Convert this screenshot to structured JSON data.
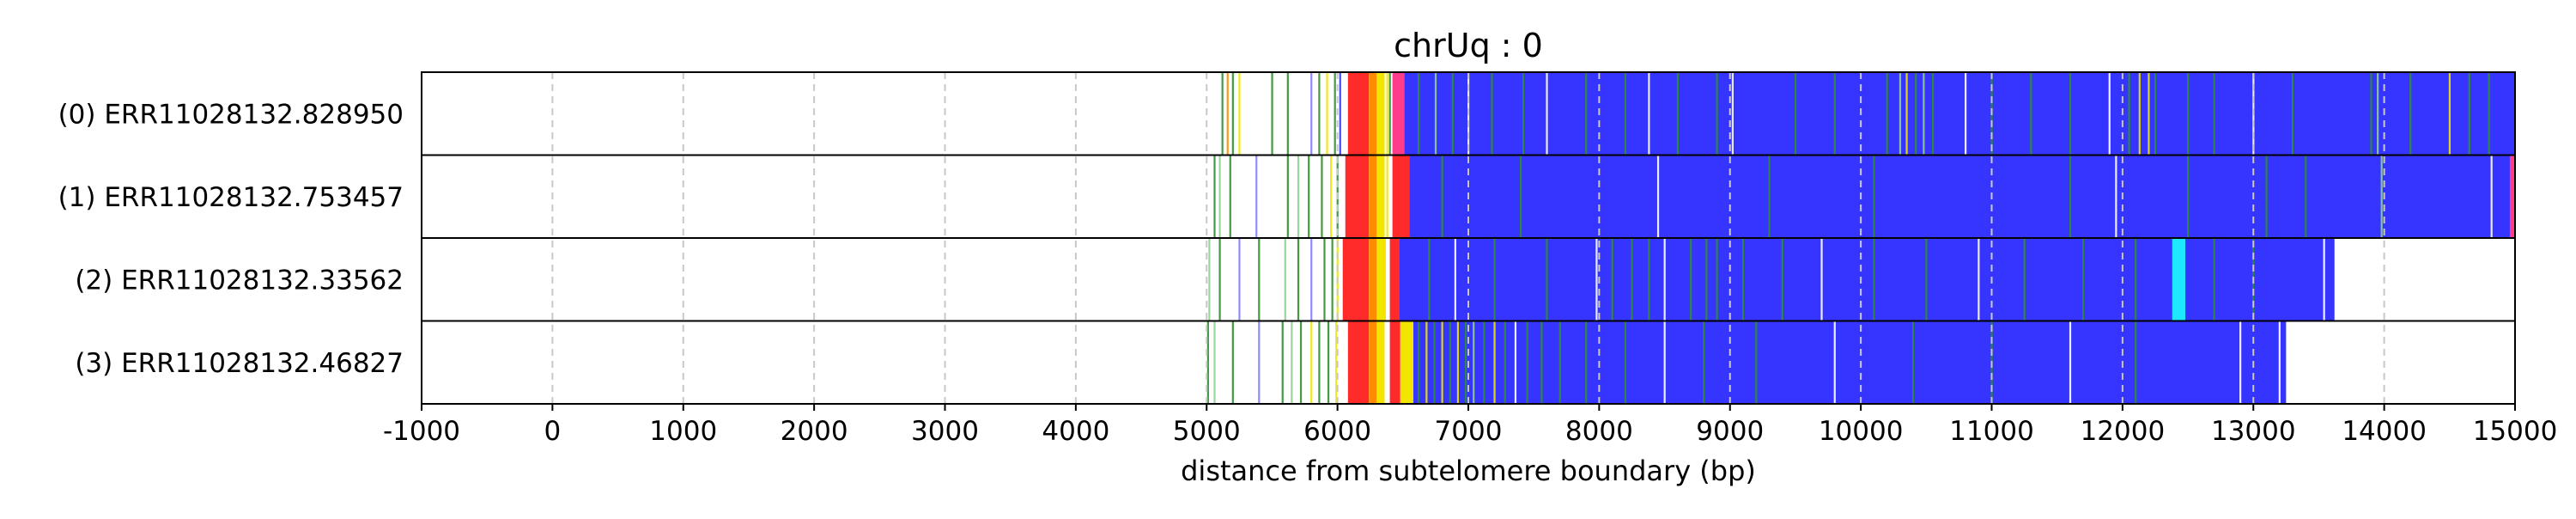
{
  "chart_data": {
    "type": "heatmap",
    "title": "chrUq : 0",
    "xlabel": "distance from subtelomere boundary (bp)",
    "ylabel": "",
    "xlim": [
      -1000,
      15000
    ],
    "xticks": [
      -1000,
      0,
      1000,
      2000,
      3000,
      4000,
      5000,
      6000,
      7000,
      8000,
      9000,
      10000,
      11000,
      12000,
      13000,
      14000,
      15000
    ],
    "xtick_labels": [
      "-1000",
      "0",
      "1000",
      "2000",
      "3000",
      "4000",
      "5000",
      "6000",
      "7000",
      "8000",
      "9000",
      "10000",
      "11000",
      "12000",
      "13000",
      "14000",
      "15000"
    ],
    "grid": "vertical dashed lines at x ticks",
    "legend": "none",
    "colors": {
      "main": "#3535ff",
      "red": "#ff2a2a",
      "orange": "#ff8c00",
      "yellow": "#f2e600",
      "green": "#2f8f2f",
      "cyan": "#1ee8ff",
      "pink": "#ff3c8c",
      "grid": "#c8c8c8",
      "frame": "#000000"
    },
    "rows": [
      {
        "label": "(0) ERR11028132.828950",
        "segments": [
          {
            "start": 6510,
            "end": 15000,
            "color": "#3535ff"
          },
          {
            "start": 6080,
            "end": 6240,
            "color": "#ff2a2a"
          },
          {
            "start": 6240,
            "end": 6300,
            "color": "#ff8c00"
          },
          {
            "start": 6300,
            "end": 6360,
            "color": "#f2e600"
          },
          {
            "start": 6420,
            "end": 6510,
            "color": "#ff3c8c"
          }
        ],
        "lines": [
          [
            5120,
            "#2f8f2f"
          ],
          [
            5160,
            "#ff8c00"
          ],
          [
            5200,
            "#2f8f2f"
          ],
          [
            5250,
            "#f2e600"
          ],
          [
            5500,
            "#2f8f2f"
          ],
          [
            5620,
            "#2f8f2f"
          ],
          [
            5800,
            "#8080ff"
          ],
          [
            5860,
            "#2f8f2f"
          ],
          [
            5920,
            "#f2e600"
          ],
          [
            5980,
            "#2f8f2f"
          ],
          [
            6020,
            "#3535ff"
          ],
          [
            6380,
            "#f2e600"
          ],
          [
            6400,
            "#2f8f2f"
          ],
          [
            6620,
            "#2f8f2f"
          ],
          [
            6750,
            "#8fd08f"
          ],
          [
            6880,
            "#2f8f2f"
          ],
          [
            7000,
            "#ffffff"
          ],
          [
            7180,
            "#2f8f2f"
          ],
          [
            7420,
            "#2f8f2f"
          ],
          [
            7600,
            "#ffffff"
          ],
          [
            7900,
            "#2f8f2f"
          ],
          [
            8200,
            "#2f8f2f"
          ],
          [
            8380,
            "#ffffff"
          ],
          [
            8600,
            "#2f8f2f"
          ],
          [
            8900,
            "#2f8f2f"
          ],
          [
            9020,
            "#ffffff"
          ],
          [
            9500,
            "#2f8f2f"
          ],
          [
            9800,
            "#2f8f2f"
          ],
          [
            10200,
            "#2f8f2f"
          ],
          [
            10300,
            "#8fd08f"
          ],
          [
            10350,
            "#f2e600"
          ],
          [
            10420,
            "#2f8f2f"
          ],
          [
            10480,
            "#8fd08f"
          ],
          [
            10550,
            "#2f8f2f"
          ],
          [
            10800,
            "#ffffff"
          ],
          [
            11000,
            "#2f8f2f"
          ],
          [
            11300,
            "#2f8f2f"
          ],
          [
            11600,
            "#2f8f2f"
          ],
          [
            11900,
            "#ffffff"
          ],
          [
            12050,
            "#2f8f2f"
          ],
          [
            12130,
            "#f2e600"
          ],
          [
            12200,
            "#f2e600"
          ],
          [
            12250,
            "#2f8f2f"
          ],
          [
            12500,
            "#2f8f2f"
          ],
          [
            12700,
            "#2f8f2f"
          ],
          [
            13000,
            "#ffffff"
          ],
          [
            13300,
            "#2f8f2f"
          ],
          [
            13900,
            "#2f8f2f"
          ],
          [
            13950,
            "#8fd08f"
          ],
          [
            14200,
            "#2f8f2f"
          ],
          [
            14500,
            "#f2e600"
          ],
          [
            14650,
            "#2f8f2f"
          ],
          [
            14800,
            "#2f8f2f"
          ]
        ]
      },
      {
        "label": "(1) ERR11028132.753457",
        "segments": [
          {
            "start": 6550,
            "end": 15000,
            "color": "#3535ff"
          },
          {
            "start": 6060,
            "end": 6240,
            "color": "#ff2a2a"
          },
          {
            "start": 6240,
            "end": 6300,
            "color": "#ff8c00"
          },
          {
            "start": 6300,
            "end": 6360,
            "color": "#f2e600"
          },
          {
            "start": 6420,
            "end": 6550,
            "color": "#ff2a2a"
          },
          {
            "start": 14960,
            "end": 15000,
            "color": "#ff3c8c"
          }
        ],
        "lines": [
          [
            5060,
            "#2f8f2f"
          ],
          [
            5100,
            "#8fd08f"
          ],
          [
            5180,
            "#2f8f2f"
          ],
          [
            5380,
            "#8080ff"
          ],
          [
            5620,
            "#2f8f2f"
          ],
          [
            5700,
            "#8fd08f"
          ],
          [
            5780,
            "#2f8f2f"
          ],
          [
            5880,
            "#2f8f2f"
          ],
          [
            5950,
            "#f2e600"
          ],
          [
            6000,
            "#2f8f2f"
          ],
          [
            6380,
            "#f2e600"
          ],
          [
            6800,
            "#2f8f2f"
          ],
          [
            7400,
            "#2f8f2f"
          ],
          [
            8450,
            "#ffffff"
          ],
          [
            9300,
            "#2f8f2f"
          ],
          [
            10100,
            "#2f8f2f"
          ],
          [
            11600,
            "#2f8f2f"
          ],
          [
            11950,
            "#ffffff"
          ],
          [
            12500,
            "#2f8f2f"
          ],
          [
            13100,
            "#2f8f2f"
          ],
          [
            13400,
            "#2f8f2f"
          ],
          [
            13980,
            "#8fd08f"
          ],
          [
            14820,
            "#ffffff"
          ]
        ]
      },
      {
        "label": "(2) ERR11028132.33562",
        "segments": [
          {
            "start": 6470,
            "end": 13620,
            "color": "#3535ff"
          },
          {
            "start": 6040,
            "end": 6240,
            "color": "#ff2a2a"
          },
          {
            "start": 6240,
            "end": 6300,
            "color": "#ff8c00"
          },
          {
            "start": 6300,
            "end": 6370,
            "color": "#f2e600"
          },
          {
            "start": 6400,
            "end": 6470,
            "color": "#ff2a2a"
          },
          {
            "start": 12380,
            "end": 12480,
            "color": "#1ee8ff"
          }
        ],
        "lines": [
          [
            5020,
            "#8fd08f"
          ],
          [
            5100,
            "#2f8f2f"
          ],
          [
            5250,
            "#8080ff"
          ],
          [
            5400,
            "#2f8f2f"
          ],
          [
            5600,
            "#8fd08f"
          ],
          [
            5700,
            "#2f8f2f"
          ],
          [
            5800,
            "#8080ff"
          ],
          [
            5900,
            "#2f8f2f"
          ],
          [
            5960,
            "#2f8f2f"
          ],
          [
            6000,
            "#f2e600"
          ],
          [
            6700,
            "#2f8f2f"
          ],
          [
            6900,
            "#ffffff"
          ],
          [
            7200,
            "#2f8f2f"
          ],
          [
            7600,
            "#2f8f2f"
          ],
          [
            7980,
            "#ffffff"
          ],
          [
            8100,
            "#2f8f2f"
          ],
          [
            8250,
            "#2f8f2f"
          ],
          [
            8380,
            "#2f8f2f"
          ],
          [
            8500,
            "#ffffff"
          ],
          [
            8700,
            "#2f8f2f"
          ],
          [
            8820,
            "#2f8f2f"
          ],
          [
            8900,
            "#2f8f2f"
          ],
          [
            9100,
            "#2f8f2f"
          ],
          [
            9400,
            "#2f8f2f"
          ],
          [
            9700,
            "#ffffff"
          ],
          [
            10100,
            "#2f8f2f"
          ],
          [
            10500,
            "#2f8f2f"
          ],
          [
            10900,
            "#ffffff"
          ],
          [
            11250,
            "#2f8f2f"
          ],
          [
            11700,
            "#2f8f2f"
          ],
          [
            12100,
            "#2f8f2f"
          ],
          [
            12700,
            "#2f8f2f"
          ],
          [
            13000,
            "#2f8f2f"
          ],
          [
            13540,
            "#ffffff"
          ]
        ]
      },
      {
        "label": "(3) ERR11028132.46827",
        "segments": [
          {
            "start": 6580,
            "end": 13250,
            "color": "#3535ff"
          },
          {
            "start": 6080,
            "end": 6240,
            "color": "#ff2a2a"
          },
          {
            "start": 6240,
            "end": 6300,
            "color": "#ff8c00"
          },
          {
            "start": 6300,
            "end": 6360,
            "color": "#f2e600"
          },
          {
            "start": 6400,
            "end": 6480,
            "color": "#ff2a2a"
          },
          {
            "start": 6480,
            "end": 6580,
            "color": "#f2e600"
          }
        ],
        "lines": [
          [
            5010,
            "#2f8f2f"
          ],
          [
            5060,
            "#8fd08f"
          ],
          [
            5200,
            "#2f8f2f"
          ],
          [
            5400,
            "#8080ff"
          ],
          [
            5580,
            "#2f8f2f"
          ],
          [
            5650,
            "#8fd08f"
          ],
          [
            5720,
            "#2f8f2f"
          ],
          [
            5800,
            "#f2e600"
          ],
          [
            5860,
            "#2f8f2f"
          ],
          [
            5930,
            "#2f8f2f"
          ],
          [
            5990,
            "#f2e600"
          ],
          [
            6620,
            "#2f8f2f"
          ],
          [
            6680,
            "#f2e600"
          ],
          [
            6740,
            "#2f8f2f"
          ],
          [
            6800,
            "#f2e600"
          ],
          [
            6860,
            "#2f8f2f"
          ],
          [
            6920,
            "#f2e600"
          ],
          [
            6980,
            "#2f8f2f"
          ],
          [
            7040,
            "#8fd08f"
          ],
          [
            7120,
            "#2f8f2f"
          ],
          [
            7200,
            "#f2e600"
          ],
          [
            7280,
            "#2f8f2f"
          ],
          [
            7360,
            "#ffffff"
          ],
          [
            7450,
            "#2f8f2f"
          ],
          [
            7560,
            "#2f8f2f"
          ],
          [
            7700,
            "#2f8f2f"
          ],
          [
            7900,
            "#2f8f2f"
          ],
          [
            8200,
            "#2f8f2f"
          ],
          [
            8500,
            "#ffffff"
          ],
          [
            8800,
            "#2f8f2f"
          ],
          [
            9200,
            "#2f8f2f"
          ],
          [
            9800,
            "#ffffff"
          ],
          [
            10400,
            "#2f8f2f"
          ],
          [
            11000,
            "#2f8f2f"
          ],
          [
            11600,
            "#ffffff"
          ],
          [
            12100,
            "#2f8f2f"
          ],
          [
            12900,
            "#ffffff"
          ],
          [
            13200,
            "#ffffff"
          ]
        ]
      }
    ]
  }
}
